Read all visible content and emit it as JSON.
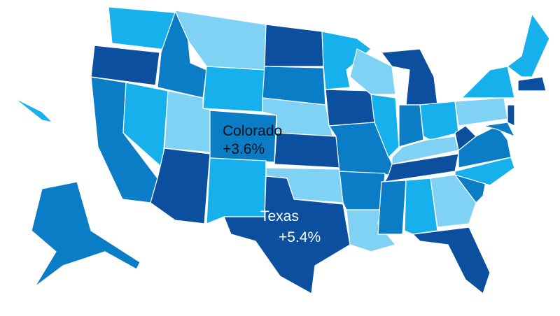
{
  "labels": [
    {
      "name": "Colorado",
      "change": "+3.6%"
    },
    {
      "name": "Texas",
      "change": "+5.4%"
    }
  ]
}
